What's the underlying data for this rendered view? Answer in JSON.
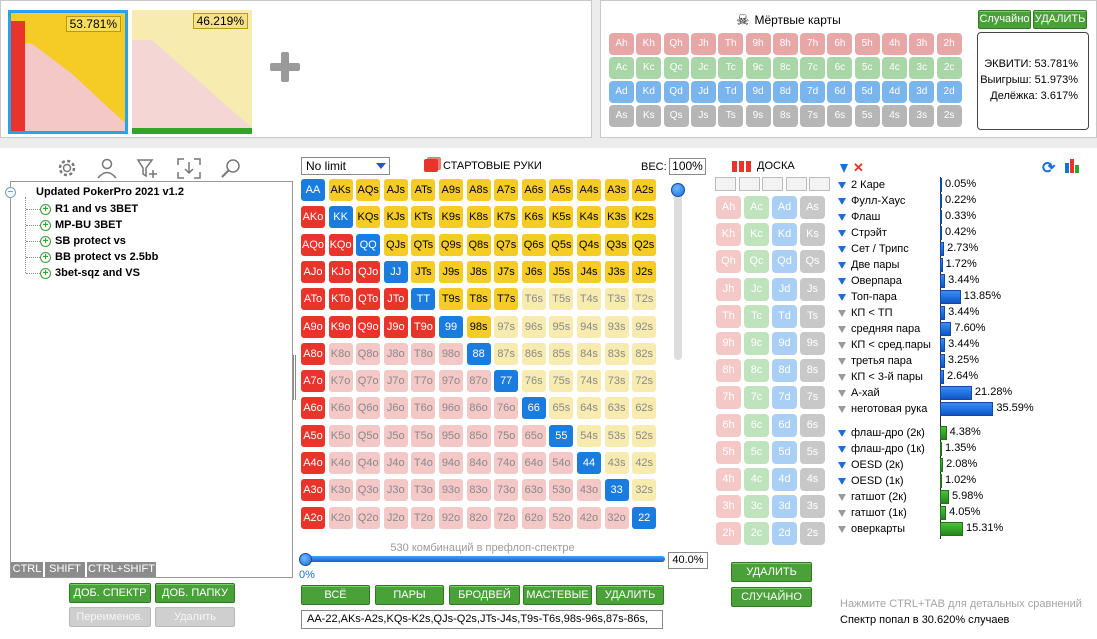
{
  "thumbnails": [
    {
      "pct": "53.781%",
      "selected": true
    },
    {
      "pct": "46.219%",
      "selected": false
    }
  ],
  "dead_cards": {
    "title": "Мёртвые карты",
    "rows": [
      {
        "suit": "h",
        "color": "#e8a7a7",
        "cards": [
          "Ah",
          "Kh",
          "Qh",
          "Jh",
          "Th",
          "9h",
          "8h",
          "7h",
          "6h",
          "5h",
          "4h",
          "3h",
          "2h"
        ]
      },
      {
        "suit": "c",
        "color": "#a9d6a6",
        "cards": [
          "Ac",
          "Kc",
          "Qc",
          "Jc",
          "Tc",
          "9c",
          "8c",
          "7c",
          "6c",
          "5c",
          "4c",
          "3c",
          "2c"
        ]
      },
      {
        "suit": "d",
        "color": "#7ab5ee",
        "cards": [
          "Ad",
          "Kd",
          "Qd",
          "Jd",
          "Td",
          "9d",
          "8d",
          "7d",
          "6d",
          "5d",
          "4d",
          "3d",
          "2d"
        ]
      },
      {
        "suit": "s",
        "color": "#b6b6b6",
        "cards": [
          "As",
          "Ks",
          "Qs",
          "Js",
          "Ts",
          "9s",
          "8s",
          "7s",
          "6s",
          "5s",
          "4s",
          "3s",
          "2s"
        ]
      }
    ]
  },
  "equity": {
    "random_btn": "Случайно",
    "delete_btn": "УДАЛИТЬ",
    "equity": "ЭКВИТИ: 53.781%",
    "win": "Выигрыш: 51.973%",
    "tie": "Делёжка: 3.617%"
  },
  "tree": {
    "root": "Updated PokerPro 2021 v1.2",
    "items": [
      "R1 and vs 3BET",
      "MP-BU 3BET",
      "SB protect vs",
      "BB protect vs 2.5bb",
      "3bet-sqz and VS"
    ],
    "tabs": [
      "CTRL",
      "SHIFT",
      "CTRL+SHIFT"
    ],
    "buttons": {
      "add_range": "ДОБ. СПЕКТР",
      "add_folder": "ДОБ. ПАПКУ",
      "rename": "Переименов.",
      "delete": "Удалить"
    }
  },
  "grid": {
    "limit": "No limit",
    "title": "СТАРТОВЫЕ РУКИ",
    "weight_label": "ВЕС:",
    "weight_value": "100%",
    "combos": "530 комбинаций в префлоп-спектре",
    "slider_min": "0%",
    "slider_value": "40.0%",
    "buttons": [
      "ВСЁ",
      "ПАРЫ",
      "БРОДВЕЙ",
      "МАСТЕВЫЕ",
      "УДАЛИТЬ"
    ],
    "range_text": "AA-22,AKs-A2s,KQs-K2s,QJs-Q2s,JTs-J4s,T9s-T6s,98s-96s,87s-86s,"
  },
  "board": {
    "title": "ДОСКА",
    "delete_btn": "УДАЛИТЬ",
    "random_btn": "СЛУЧАЙНО"
  },
  "stats": [
    {
      "label": "2 Каре",
      "pct": "0.05%",
      "bar": 0.05,
      "color": "blue"
    },
    {
      "label": "Фулл-Хаус",
      "pct": "0.22%",
      "bar": 0.22,
      "color": "blue"
    },
    {
      "label": "Флаш",
      "pct": "0.33%",
      "bar": 0.33,
      "color": "blue"
    },
    {
      "label": "Стрэйт",
      "pct": "0.42%",
      "bar": 0.42,
      "color": "blue"
    },
    {
      "label": "Сет / Трипс",
      "pct": "2.73%",
      "bar": 2.73,
      "color": "blue"
    },
    {
      "label": "Две пары",
      "pct": "1.72%",
      "bar": 1.72,
      "color": "blue"
    },
    {
      "label": "Оверпара",
      "pct": "3.44%",
      "bar": 3.44,
      "color": "blue"
    },
    {
      "label": "Топ-пара",
      "pct": "13.85%",
      "bar": 13.85,
      "color": "blue"
    },
    {
      "label": "КП < ТП",
      "pct": "3.44%",
      "bar": 3.44,
      "color": "gray"
    },
    {
      "label": "средняя пара",
      "pct": "7.60%",
      "bar": 7.6,
      "color": "gray"
    },
    {
      "label": "КП < сред.пары",
      "pct": "3.44%",
      "bar": 3.44,
      "color": "gray"
    },
    {
      "label": "третья пара",
      "pct": "3.25%",
      "bar": 3.25,
      "color": "gray"
    },
    {
      "label": "КП < 3-й пары",
      "pct": "2.64%",
      "bar": 2.64,
      "color": "gray"
    },
    {
      "label": "А-хай",
      "pct": "21.28%",
      "bar": 21.28,
      "color": "gray"
    },
    {
      "label": "неготовая рука",
      "pct": "35.59%",
      "bar": 35.59,
      "color": "gray"
    }
  ],
  "draws": [
    {
      "label": "флаш-дро (2к)",
      "pct": "4.38%",
      "bar": 4.38
    },
    {
      "label": "флаш-дро (1к)",
      "pct": "1.35%",
      "bar": 1.35
    },
    {
      "label": "OESD (2к)",
      "pct": "2.08%",
      "bar": 2.08
    },
    {
      "label": "OESD (1к)",
      "pct": "1.02%",
      "bar": 1.02
    },
    {
      "label": "гатшот (2к)",
      "pct": "5.98%",
      "bar": 5.98
    },
    {
      "label": "гатшот (1к)",
      "pct": "4.05%",
      "bar": 4.05
    },
    {
      "label": "оверкарты",
      "pct": "15.31%",
      "bar": 15.31
    }
  ],
  "footer": {
    "hint": "Нажмите CTRL+TAB для детальных сравнений",
    "hit": "Спектр попал в 30.620% случаев"
  },
  "colors": {
    "pair": "#1b7ce0",
    "suited": "#f5cc25",
    "offsuit": "#e8342b",
    "pale": "#f4c8c6",
    "pale_suited": "#f7ebb0"
  }
}
